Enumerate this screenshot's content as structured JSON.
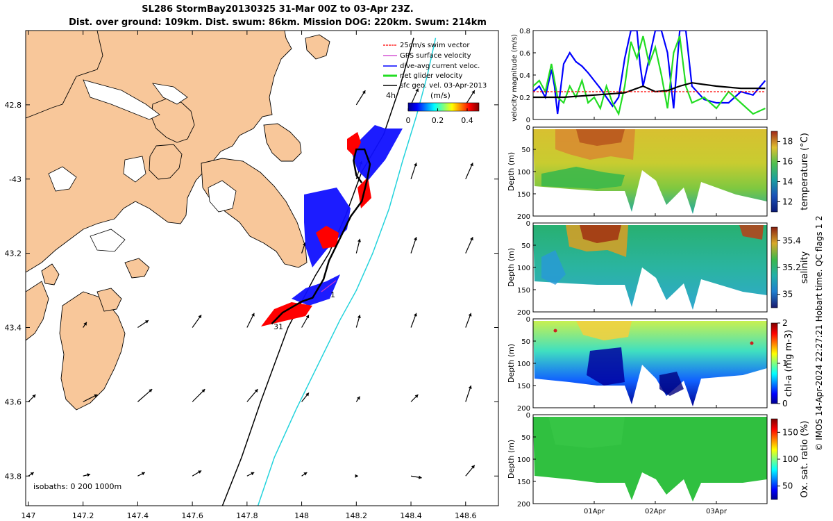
{
  "figure": {
    "title_line1": "SL286 StormBay20130325 31-Mar 00Z to 03-Apr 23Z.",
    "title_line2": "Dist. over ground: 109km. Dist. swum: 86km. Mission DOG: 220km. Swum: 214km",
    "footer_vertical": "© IMOS 14-Apr-2024 22:27:21 Hobart time. QC flags 1  2"
  },
  "colors": {
    "land": "#f8c79a",
    "sea": "#ffffff",
    "isobath_200": "#000000",
    "isobath_1000": "#22d3dc",
    "swim": "#ff0000",
    "gps": "#cc33cc",
    "dive_avg": "#0000ff",
    "net": "#22dd22",
    "sfc_geo": "#000000"
  },
  "chart_data": [
    {
      "type": "map",
      "xlim": [
        146.99,
        148.72
      ],
      "ylim": [
        -43.88,
        -42.6
      ],
      "x_ticks": [
        147,
        147.2,
        147.4,
        147.6,
        147.8,
        148,
        148.2,
        148.4,
        148.6
      ],
      "x_tick_labels": [
        "147",
        "147.2",
        "147.4",
        "147.6",
        "147.8",
        "148",
        "148.2",
        "148.4",
        "148.6"
      ],
      "y_ticks": [
        -42.8,
        -43,
        -43.2,
        -43.4,
        -43.6,
        -43.8
      ],
      "y_tick_labels": [
        "42.8",
        "-43",
        "43.2",
        "43.4",
        "43.6",
        "43.8"
      ],
      "legend": {
        "placement": "top-right",
        "entries": [
          "25cm/s swim vector",
          "GPS surface velocity",
          "dive-avg current veloc.",
          "net glider velocity",
          "sfc geo. vel. 03-Apr-2013"
        ]
      },
      "scale_label": "4h",
      "colorbar": {
        "label": "(m/s)",
        "ticks": [
          0,
          0.2,
          0.4
        ],
        "tick_labels": [
          "0",
          "0.2",
          "0.4"
        ],
        "range": [
          0,
          0.48
        ]
      },
      "isobaths_text": "isobaths: 0   200  1000m",
      "track_start_label": "31",
      "track_end_label": "1",
      "glider_track": {
        "lon": [
          147.89,
          147.93,
          148.0,
          148.04,
          148.08,
          148.1,
          148.14,
          148.18,
          148.22,
          148.24,
          148.25,
          148.23,
          148.2,
          148.19,
          148.2,
          148.22
        ],
        "lat": [
          -43.39,
          -43.36,
          -43.33,
          -43.32,
          -43.27,
          -43.22,
          -43.16,
          -43.1,
          -43.06,
          -43.0,
          -42.96,
          -42.92,
          -42.92,
          -42.95,
          -42.99,
          -43.01
        ]
      },
      "isobath_200m": {
        "lon": [
          147.71,
          147.78,
          147.85,
          147.9,
          147.95,
          148.0,
          148.05,
          148.1,
          148.16,
          148.22,
          148.3,
          148.36,
          148.41
        ],
        "lat": [
          -43.88,
          -43.75,
          -43.6,
          -43.5,
          -43.4,
          -43.33,
          -43.26,
          -43.2,
          -43.1,
          -42.98,
          -42.88,
          -42.75,
          -42.62
        ]
      },
      "isobath_1000m": {
        "lon": [
          147.84,
          147.9,
          147.98,
          148.06,
          148.14,
          148.2,
          148.26,
          148.32,
          148.37,
          148.42,
          148.46,
          148.49
        ],
        "lat": [
          -43.88,
          -43.75,
          -43.62,
          -43.5,
          -43.38,
          -43.3,
          -43.2,
          -43.08,
          -42.95,
          -42.83,
          -42.72,
          -42.62
        ]
      },
      "geo_vectors": {
        "lon": [
          147.0,
          147.2,
          147.4,
          147.6,
          147.8,
          148.0,
          148.2,
          148.4,
          148.6
        ],
        "lat": [
          -42.8,
          -43.0,
          -43.2,
          -43.4,
          -43.6,
          -43.8
        ],
        "u": [
          [
            0,
            0,
            0,
            0,
            0,
            0,
            0.05,
            0.04,
            0.05
          ],
          [
            0,
            0,
            0,
            0,
            0,
            0,
            0.03,
            0.03,
            0.04
          ],
          [
            0,
            0,
            0,
            0,
            0,
            0.02,
            0.02,
            0.03,
            0.04
          ],
          [
            0,
            0.02,
            0.06,
            0.05,
            0.04,
            0.04,
            0.02,
            0.03,
            0.03
          ],
          [
            0.04,
            0.08,
            0.08,
            0.07,
            0.06,
            0.04,
            0.02,
            0.04,
            0.03
          ],
          [
            0.03,
            0.04,
            0.04,
            0.05,
            0.04,
            0.03,
            0.01,
            0.06,
            0.05
          ]
        ],
        "v": [
          [
            0,
            0,
            0,
            0,
            0,
            0,
            0.08,
            0.09,
            0.08
          ],
          [
            0,
            0,
            0,
            0,
            0,
            0,
            0.1,
            0.09,
            0.09
          ],
          [
            0,
            0,
            0,
            0,
            0,
            0.06,
            0.08,
            0.09,
            0.09
          ],
          [
            0,
            0.03,
            0.04,
            0.07,
            0.08,
            0.07,
            0.07,
            0.08,
            0.08
          ],
          [
            0.04,
            0.04,
            0.07,
            0.07,
            0.07,
            0.05,
            0.03,
            0.04,
            0.09
          ],
          [
            0.02,
            0.01,
            0.02,
            0.03,
            0.02,
            0.02,
            0.0,
            -0.01,
            0.06
          ]
        ]
      }
    },
    {
      "type": "line",
      "ylabel": "velocity magnitude (m/s)",
      "ylim": [
        0,
        0.8
      ],
      "xlim": [
        0,
        3.83
      ],
      "y_ticks": [
        0,
        0.2,
        0.4,
        0.6,
        0.8
      ],
      "y_tick_labels": [
        "0",
        "0.2",
        "0.4",
        "0.6",
        "0.8"
      ],
      "x_ticks": [
        1,
        2,
        3
      ],
      "series": [
        {
          "color": "#0000ff",
          "x": [
            0,
            0.1,
            0.2,
            0.3,
            0.35,
            0.4,
            0.5,
            0.6,
            0.7,
            0.8,
            0.9,
            1.0,
            1.1,
            1.2,
            1.3,
            1.4,
            1.5,
            1.6,
            1.7,
            1.75,
            1.8,
            1.9,
            2.0,
            2.1,
            2.2,
            2.3,
            2.4,
            2.5,
            2.6,
            2.8,
            3.0,
            3.2,
            3.4,
            3.6,
            3.8
          ],
          "y": [
            0.25,
            0.3,
            0.2,
            0.45,
            0.3,
            0.05,
            0.5,
            0.6,
            0.52,
            0.48,
            0.42,
            0.35,
            0.28,
            0.2,
            0.12,
            0.2,
            0.55,
            0.8,
            0.8,
            0.5,
            0.3,
            0.55,
            0.8,
            0.8,
            0.6,
            0.1,
            0.8,
            0.8,
            0.3,
            0.18,
            0.15,
            0.15,
            0.25,
            0.22,
            0.35
          ]
        },
        {
          "color": "#22dd22",
          "x": [
            0,
            0.1,
            0.2,
            0.3,
            0.4,
            0.5,
            0.6,
            0.7,
            0.8,
            0.9,
            1.0,
            1.1,
            1.2,
            1.3,
            1.4,
            1.5,
            1.6,
            1.7,
            1.8,
            1.9,
            2.0,
            2.1,
            2.2,
            2.3,
            2.4,
            2.5,
            2.6,
            2.8,
            3.0,
            3.2,
            3.4,
            3.6,
            3.8
          ],
          "y": [
            0.3,
            0.35,
            0.25,
            0.5,
            0.2,
            0.15,
            0.3,
            0.2,
            0.35,
            0.15,
            0.2,
            0.1,
            0.3,
            0.15,
            0.05,
            0.3,
            0.7,
            0.55,
            0.75,
            0.5,
            0.65,
            0.4,
            0.1,
            0.6,
            0.75,
            0.3,
            0.15,
            0.2,
            0.1,
            0.25,
            0.15,
            0.05,
            0.1
          ]
        },
        {
          "color": "#000000",
          "x": [
            0,
            0.5,
            1.0,
            1.5,
            1.8,
            2.0,
            2.2,
            2.4,
            2.6,
            3.0,
            3.4,
            3.8
          ],
          "y": [
            0.2,
            0.2,
            0.22,
            0.24,
            0.3,
            0.25,
            0.26,
            0.3,
            0.33,
            0.3,
            0.28,
            0.28
          ]
        },
        {
          "color": "#ff0000",
          "x": [
            0,
            3.8
          ],
          "y": [
            0.25,
            0.25
          ]
        }
      ]
    },
    {
      "type": "heatmap",
      "ylabel": "Depth (m)",
      "ylim": [
        0,
        200
      ],
      "y_ticks": [
        0,
        50,
        100,
        150,
        200
      ],
      "y_tick_labels": [
        "0",
        "50",
        "100",
        "150",
        "200"
      ],
      "colorbar_label": "temperature (°C)",
      "colorbar_ticks": [
        12,
        14,
        16,
        18
      ],
      "colorbar_tick_labels": [
        "12",
        "14",
        "16",
        "18"
      ],
      "colorbar_range": [
        11,
        19
      ]
    },
    {
      "type": "heatmap",
      "ylabel": "Depth (m)",
      "ylim": [
        0,
        200
      ],
      "y_ticks": [
        0,
        50,
        100,
        150,
        200
      ],
      "y_tick_labels": [
        "0",
        "50",
        "100",
        "150",
        "200"
      ],
      "colorbar_label": "salinity",
      "colorbar_ticks": [
        35,
        35.2,
        35.4
      ],
      "colorbar_tick_labels": [
        "35",
        "35.2",
        "35.4"
      ],
      "colorbar_range": [
        34.9,
        35.5
      ]
    },
    {
      "type": "heatmap",
      "ylabel": "Depth (m)",
      "ylim": [
        0,
        200
      ],
      "y_ticks": [
        0,
        50,
        100,
        150,
        200
      ],
      "y_tick_labels": [
        "0",
        "50",
        "100",
        "150",
        "200"
      ],
      "colorbar_label": "chl-a (mg m-3)",
      "colorbar_ticks": [
        0,
        1,
        2
      ],
      "colorbar_tick_labels": [
        "0",
        "1",
        "2"
      ],
      "colorbar_range": [
        0,
        2
      ]
    },
    {
      "type": "heatmap",
      "ylabel": "Depth (m)",
      "ylim": [
        0,
        200
      ],
      "y_ticks": [
        0,
        50,
        100,
        150,
        200
      ],
      "y_tick_labels": [
        "0",
        "50",
        "100",
        "150",
        "200"
      ],
      "colorbar_label": "Ox. sat. ratio (%)",
      "colorbar_ticks": [
        50,
        100,
        150
      ],
      "colorbar_tick_labels": [
        "50",
        "100",
        "150"
      ],
      "colorbar_range": [
        25,
        175
      ],
      "x_ticks": [
        1,
        2,
        3
      ],
      "x_tick_labels": [
        "01Apr",
        "02Apr",
        "03Apr"
      ]
    }
  ]
}
